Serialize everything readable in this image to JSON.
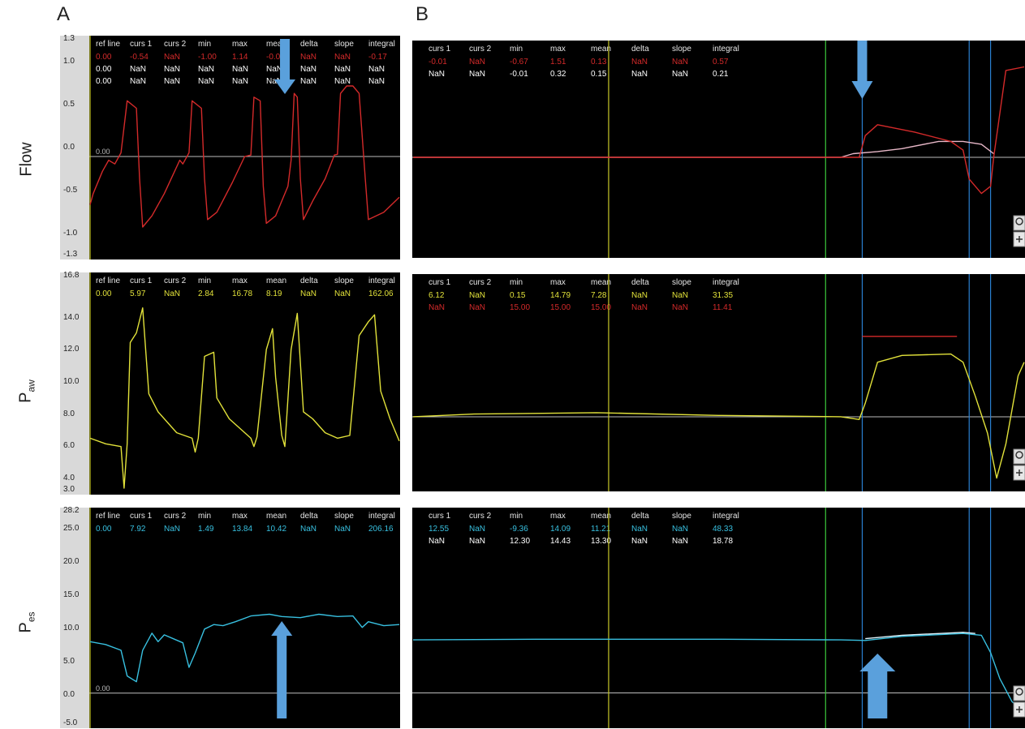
{
  "labels": {
    "section_a": "A",
    "section_b": "B"
  },
  "rows": [
    {
      "main": "Flow",
      "sub": ""
    },
    {
      "main": "P",
      "sub": "aw"
    },
    {
      "main": "P",
      "sub": "es"
    }
  ],
  "colors": {
    "flow": "#d42a2a",
    "flow_ref": "#e8b8c8",
    "paw": "#e2e23a",
    "pes": "#38c0e0",
    "cursor_yellow": "#c8c828",
    "cursor_green": "#3cc83c",
    "cursor_blue": "#2a7fd0",
    "arrow": "#5aa0dc",
    "axis_strip": "#d9d9d9"
  },
  "chart_data": [
    {
      "id": "A-flow",
      "type": "line",
      "ticks": [
        "1.3",
        "1.0",
        "0.5",
        "0.0",
        "-0.5",
        "-1.0",
        "-1.3"
      ],
      "ylim": [
        -1.3,
        1.3
      ],
      "zero_label": "0.00",
      "headers": [
        "ref line",
        "curs 1",
        "curs 2",
        "min",
        "max",
        "mean",
        "delta",
        "slope",
        "integral"
      ],
      "rows": [
        {
          "color": "#d42a2a",
          "cells": [
            "0.00",
            "-0.54",
            "NaN",
            "-1.00",
            "1.14",
            "-0.01",
            "NaN",
            "NaN",
            "-0.17"
          ]
        },
        {
          "color": "#ffffff",
          "cells": [
            "0.00",
            "NaN",
            "NaN",
            "NaN",
            "NaN",
            "NaN",
            "NaN",
            "NaN",
            "NaN"
          ]
        },
        {
          "color": "#ffffff",
          "cells": [
            "0.00",
            "NaN",
            "NaN",
            "NaN",
            "NaN",
            "NaN",
            "NaN",
            "NaN",
            "NaN"
          ]
        }
      ],
      "series": [
        {
          "color": "#d42a2a",
          "points": [
            [
              0,
              -0.65
            ],
            [
              0.01,
              -0.5
            ],
            [
              0.04,
              -0.2
            ],
            [
              0.06,
              -0.05
            ],
            [
              0.08,
              -0.1
            ],
            [
              0.1,
              0.05
            ],
            [
              0.12,
              0.75
            ],
            [
              0.15,
              0.65
            ],
            [
              0.16,
              -0.3
            ],
            [
              0.17,
              -0.95
            ],
            [
              0.2,
              -0.8
            ],
            [
              0.24,
              -0.5
            ],
            [
              0.29,
              -0.05
            ],
            [
              0.3,
              -0.1
            ],
            [
              0.32,
              0.05
            ],
            [
              0.33,
              0.75
            ],
            [
              0.36,
              0.65
            ],
            [
              0.37,
              -0.3
            ],
            [
              0.38,
              -0.85
            ],
            [
              0.41,
              -0.75
            ],
            [
              0.46,
              -0.35
            ],
            [
              0.5,
              0.0
            ],
            [
              0.52,
              0.02
            ],
            [
              0.53,
              0.8
            ],
            [
              0.55,
              0.75
            ],
            [
              0.56,
              -0.4
            ],
            [
              0.57,
              -0.9
            ],
            [
              0.6,
              -0.8
            ],
            [
              0.64,
              -0.4
            ],
            [
              0.65,
              -0.05
            ],
            [
              0.66,
              0.85
            ],
            [
              0.67,
              0.8
            ],
            [
              0.68,
              -0.3
            ],
            [
              0.69,
              -0.85
            ],
            [
              0.72,
              -0.6
            ],
            [
              0.76,
              -0.3
            ],
            [
              0.79,
              0.02
            ],
            [
              0.8,
              0.03
            ],
            [
              0.81,
              0.85
            ],
            [
              0.83,
              0.95
            ],
            [
              0.85,
              0.95
            ],
            [
              0.87,
              0.85
            ],
            [
              0.89,
              -0.3
            ],
            [
              0.9,
              -0.85
            ],
            [
              0.95,
              -0.75
            ],
            [
              1.0,
              -0.55
            ]
          ]
        }
      ],
      "cursors": [
        {
          "x": 0.0,
          "color": "#c8c828"
        }
      ],
      "arrow": {
        "x": 0.63,
        "dir": "down"
      }
    },
    {
      "id": "A-paw",
      "type": "line",
      "ticks": [
        "16.8",
        "14.0",
        "12.0",
        "10.0",
        "8.0",
        "6.0",
        "4.0",
        "3.0"
      ],
      "ylim": [
        3.0,
        16.8
      ],
      "zero_label": "",
      "headers": [
        "ref line",
        "curs 1",
        "curs 2",
        "min",
        "max",
        "mean",
        "delta",
        "slope",
        "integral"
      ],
      "rows": [
        {
          "color": "#e2e23a",
          "cells": [
            "0.00",
            "5.97",
            "NaN",
            "2.84",
            "16.78",
            "8.19",
            "NaN",
            "NaN",
            "162.06"
          ]
        }
      ],
      "series": [
        {
          "color": "#e2e23a",
          "points": [
            [
              0,
              6.6
            ],
            [
              0.05,
              6.2
            ],
            [
              0.1,
              6.0
            ],
            [
              0.11,
              3.0
            ],
            [
              0.12,
              6.2
            ],
            [
              0.13,
              13.5
            ],
            [
              0.15,
              14.2
            ],
            [
              0.17,
              16.0
            ],
            [
              0.19,
              9.8
            ],
            [
              0.22,
              8.5
            ],
            [
              0.28,
              7.0
            ],
            [
              0.33,
              6.6
            ],
            [
              0.34,
              5.6
            ],
            [
              0.35,
              6.6
            ],
            [
              0.37,
              12.5
            ],
            [
              0.4,
              12.8
            ],
            [
              0.41,
              9.5
            ],
            [
              0.45,
              8.0
            ],
            [
              0.52,
              6.6
            ],
            [
              0.53,
              6.0
            ],
            [
              0.54,
              6.7
            ],
            [
              0.57,
              13.0
            ],
            [
              0.59,
              14.5
            ],
            [
              0.6,
              11.0
            ],
            [
              0.62,
              6.8
            ],
            [
              0.63,
              6.0
            ],
            [
              0.65,
              13.0
            ],
            [
              0.67,
              15.6
            ],
            [
              0.69,
              8.5
            ],
            [
              0.72,
              8.0
            ],
            [
              0.76,
              7.0
            ],
            [
              0.8,
              6.6
            ],
            [
              0.84,
              6.8
            ],
            [
              0.87,
              14.0
            ],
            [
              0.9,
              15.0
            ],
            [
              0.92,
              15.5
            ],
            [
              0.94,
              10.0
            ],
            [
              0.97,
              8.0
            ],
            [
              1.0,
              6.4
            ]
          ]
        }
      ],
      "cursors": [
        {
          "x": 0.0,
          "color": "#c8c828"
        }
      ]
    },
    {
      "id": "A-pes",
      "type": "line",
      "ticks": [
        "28.2",
        "25.0",
        "20.0",
        "15.0",
        "10.0",
        "5.0",
        "0.0",
        "-5.0"
      ],
      "ylim": [
        -5.0,
        28.2
      ],
      "zero_label": "0.00",
      "headers": [
        "ref line",
        "curs 1",
        "curs 2",
        "min",
        "max",
        "mean",
        "delta",
        "slope",
        "integral"
      ],
      "rows": [
        {
          "color": "#38c0e0",
          "cells": [
            "0.00",
            "7.92",
            "NaN",
            "1.49",
            "13.84",
            "10.42",
            "NaN",
            "NaN",
            "206.16"
          ]
        }
      ],
      "series": [
        {
          "color": "#38c0e0",
          "points": [
            [
              0,
              9.0
            ],
            [
              0.05,
              8.5
            ],
            [
              0.1,
              7.5
            ],
            [
              0.12,
              3.0
            ],
            [
              0.15,
              2.0
            ],
            [
              0.17,
              7.5
            ],
            [
              0.2,
              10.5
            ],
            [
              0.22,
              9.0
            ],
            [
              0.24,
              10.2
            ],
            [
              0.27,
              9.5
            ],
            [
              0.3,
              8.8
            ],
            [
              0.32,
              4.5
            ],
            [
              0.34,
              7.0
            ],
            [
              0.37,
              11.2
            ],
            [
              0.4,
              12.0
            ],
            [
              0.43,
              11.8
            ],
            [
              0.47,
              12.5
            ],
            [
              0.52,
              13.5
            ],
            [
              0.58,
              13.8
            ],
            [
              0.62,
              13.4
            ],
            [
              0.68,
              13.2
            ],
            [
              0.74,
              13.8
            ],
            [
              0.8,
              13.4
            ],
            [
              0.85,
              13.5
            ],
            [
              0.88,
              11.5
            ],
            [
              0.9,
              12.5
            ],
            [
              0.95,
              11.8
            ],
            [
              1.0,
              12.0
            ]
          ]
        }
      ],
      "cursors": [
        {
          "x": 0.0,
          "color": "#c8c828"
        }
      ],
      "arrow": {
        "x": 0.62,
        "dir": "up"
      }
    },
    {
      "id": "B-flow",
      "type": "line",
      "headers": [
        "curs 1",
        "curs 2",
        "min",
        "max",
        "mean",
        "delta",
        "slope",
        "integral"
      ],
      "rows": [
        {
          "color": "#d42a2a",
          "cells": [
            "-0.01",
            "NaN",
            "-0.67",
            "1.51",
            "0.13",
            "NaN",
            "NaN",
            "0.57"
          ]
        },
        {
          "color": "#ffffff",
          "cells": [
            "NaN",
            "NaN",
            "-0.01",
            "0.32",
            "0.15",
            "NaN",
            "NaN",
            "0.21"
          ]
        }
      ],
      "ylim": [
        -1.3,
        1.3
      ],
      "series": [
        {
          "color": "#e8b8c8",
          "points": [
            [
              0,
              0.0
            ],
            [
              0.7,
              0.0
            ],
            [
              0.72,
              0.05
            ],
            [
              0.76,
              0.08
            ],
            [
              0.8,
              0.12
            ],
            [
              0.86,
              0.22
            ],
            [
              0.9,
              0.22
            ],
            [
              0.93,
              0.18
            ],
            [
              0.95,
              0.05
            ]
          ]
        },
        {
          "color": "#d42a2a",
          "points": [
            [
              0,
              0.0
            ],
            [
              0.7,
              0.0
            ],
            [
              0.73,
              0.0
            ],
            [
              0.74,
              0.3
            ],
            [
              0.76,
              0.45
            ],
            [
              0.82,
              0.35
            ],
            [
              0.88,
              0.22
            ],
            [
              0.9,
              0.1
            ],
            [
              0.91,
              -0.3
            ],
            [
              0.93,
              -0.5
            ],
            [
              0.945,
              -0.4
            ],
            [
              0.95,
              0.0
            ],
            [
              0.97,
              1.2
            ],
            [
              1.0,
              1.25
            ]
          ]
        }
      ],
      "cursors": [
        {
          "x": 0.32,
          "color": "#c8c828"
        },
        {
          "x": 0.675,
          "color": "#3cc83c"
        },
        {
          "x": 0.735,
          "color": "#2a7fd0"
        },
        {
          "x": 0.91,
          "color": "#2a7fd0"
        },
        {
          "x": 0.945,
          "color": "#2a7fd0"
        }
      ],
      "arrow": {
        "x": 0.735,
        "dir": "down"
      }
    },
    {
      "id": "B-paw",
      "type": "line",
      "headers": [
        "curs 1",
        "curs 2",
        "min",
        "max",
        "mean",
        "delta",
        "slope",
        "integral"
      ],
      "rows": [
        {
          "color": "#e2e23a",
          "cells": [
            "6.12",
            "NaN",
            "0.15",
            "14.79",
            "7.28",
            "NaN",
            "NaN",
            "31.35"
          ]
        },
        {
          "color": "#d42a2a",
          "cells": [
            "NaN",
            "NaN",
            "15.00",
            "15.00",
            "15.00",
            "NaN",
            "NaN",
            "11.41"
          ]
        }
      ],
      "ylim": [
        3.0,
        16.8
      ],
      "series": [
        {
          "color": "#e2e23a",
          "points": [
            [
              0,
              8.0
            ],
            [
              0.1,
              8.2
            ],
            [
              0.3,
              8.3
            ],
            [
              0.5,
              8.1
            ],
            [
              0.7,
              8.0
            ],
            [
              0.73,
              7.8
            ],
            [
              0.74,
              9.0
            ],
            [
              0.76,
              12.0
            ],
            [
              0.8,
              12.5
            ],
            [
              0.88,
              12.6
            ],
            [
              0.9,
              12.0
            ],
            [
              0.92,
              9.5
            ],
            [
              0.94,
              6.8
            ],
            [
              0.955,
              3.5
            ],
            [
              0.97,
              6.0
            ],
            [
              0.99,
              11.0
            ],
            [
              1.0,
              12.0
            ]
          ]
        },
        {
          "color": "#d42a2a",
          "points": [
            [
              0.735,
              13.9
            ],
            [
              0.89,
              13.9
            ]
          ]
        }
      ],
      "cursors": [
        {
          "x": 0.32,
          "color": "#c8c828"
        },
        {
          "x": 0.675,
          "color": "#3cc83c"
        },
        {
          "x": 0.735,
          "color": "#2a7fd0"
        },
        {
          "x": 0.91,
          "color": "#2a7fd0"
        },
        {
          "x": 0.945,
          "color": "#2a7fd0"
        }
      ]
    },
    {
      "id": "B-pes",
      "type": "line",
      "headers": [
        "curs 1",
        "curs 2",
        "min",
        "max",
        "mean",
        "delta",
        "slope",
        "integral"
      ],
      "rows": [
        {
          "color": "#38c0e0",
          "cells": [
            "12.55",
            "NaN",
            "-9.36",
            "14.09",
            "11.21",
            "NaN",
            "NaN",
            "48.33"
          ]
        },
        {
          "color": "#ffffff",
          "cells": [
            "NaN",
            "NaN",
            "12.30",
            "14.43",
            "13.30",
            "NaN",
            "NaN",
            "18.78"
          ]
        }
      ],
      "ylim": [
        -5.0,
        28.2
      ],
      "series": [
        {
          "color": "#38c0e0",
          "points": [
            [
              0,
              9.2
            ],
            [
              0.2,
              9.3
            ],
            [
              0.5,
              9.3
            ],
            [
              0.7,
              9.2
            ],
            [
              0.74,
              9.1
            ],
            [
              0.8,
              9.8
            ],
            [
              0.9,
              10.3
            ],
            [
              0.93,
              10.0
            ],
            [
              0.945,
              7.0
            ],
            [
              0.96,
              2.5
            ],
            [
              0.98,
              -1.5
            ],
            [
              1.0,
              -3.5
            ]
          ]
        },
        {
          "color": "#e0f6ff",
          "points": [
            [
              0.74,
              9.4
            ],
            [
              0.8,
              10.0
            ],
            [
              0.9,
              10.5
            ],
            [
              0.92,
              10.3
            ]
          ]
        }
      ],
      "cursors": [
        {
          "x": 0.32,
          "color": "#c8c828"
        },
        {
          "x": 0.675,
          "color": "#3cc83c"
        },
        {
          "x": 0.735,
          "color": "#2a7fd0"
        },
        {
          "x": 0.91,
          "color": "#2a7fd0"
        },
        {
          "x": 0.945,
          "color": "#2a7fd0"
        }
      ],
      "arrow": {
        "x": 0.76,
        "dir": "up"
      }
    }
  ]
}
